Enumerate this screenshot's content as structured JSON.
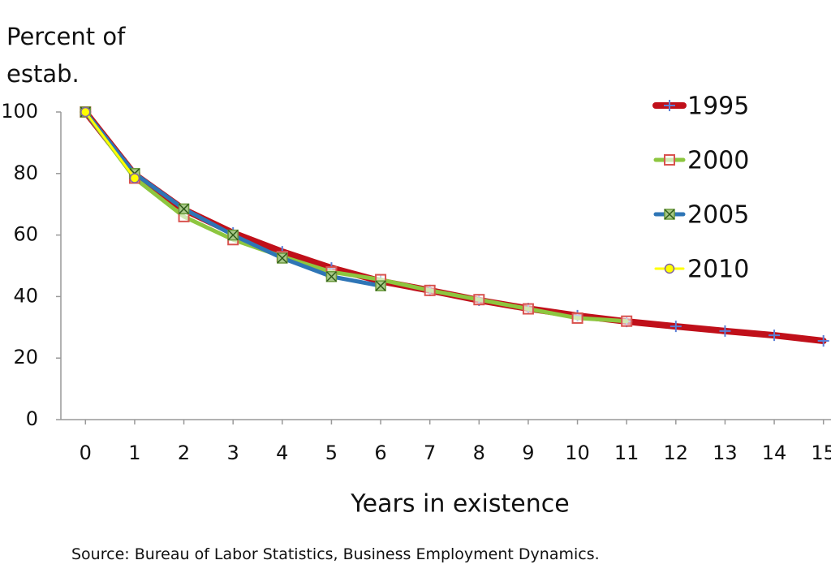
{
  "chart_data": {
    "type": "line",
    "ylabel": "Percent of estab.",
    "xlabel": "Years in existence",
    "source": "Source: Bureau of Labor Statistics, Business Employment Dynamics.",
    "x": [
      0,
      1,
      2,
      3,
      4,
      5,
      6,
      7,
      8,
      9,
      10,
      11,
      12,
      13,
      14,
      15
    ],
    "xlim": [
      -0.5,
      15.5
    ],
    "xticks": [
      0,
      1,
      2,
      3,
      4,
      5,
      6,
      7,
      8,
      9,
      10,
      11,
      12,
      13,
      14,
      15
    ],
    "ylim": [
      0,
      100
    ],
    "yticks": [
      0,
      20,
      40,
      60,
      80,
      100
    ],
    "grid": false,
    "legend": "right",
    "series": [
      {
        "name": "1995",
        "color": "#c0101a",
        "line_width": 8,
        "marker": "plus",
        "marker_color": "#5b7fd6",
        "values": [
          100,
          79.7,
          68.3,
          60.7,
          54.6,
          49.3,
          45,
          42,
          38.8,
          36.1,
          33.8,
          31.9,
          30.3,
          28.8,
          27.4,
          25.6
        ]
      },
      {
        "name": "2000",
        "color": "#8dc63f",
        "line_width": 5,
        "marker": "square-open",
        "marker_color": "#d9534f",
        "values": [
          100,
          78.5,
          66,
          58.5,
          53,
          48,
          45.5,
          42,
          39,
          36,
          33,
          32,
          null,
          null,
          null,
          null
        ]
      },
      {
        "name": "2005",
        "color": "#2e75b6",
        "line_width": 5,
        "marker": "square-x",
        "marker_color": "#6a9a3a",
        "values": [
          100,
          80,
          68.5,
          60,
          52.5,
          46.5,
          43.5,
          null,
          null,
          null,
          null,
          null,
          null,
          null,
          null,
          null
        ]
      },
      {
        "name": "2010",
        "color": "#ffff00",
        "line_width": 3,
        "marker": "circle",
        "marker_color": "#8064a2",
        "values": [
          100,
          78.5,
          null,
          null,
          null,
          null,
          null,
          null,
          null,
          null,
          null,
          null,
          null,
          null,
          null,
          null
        ]
      }
    ]
  }
}
